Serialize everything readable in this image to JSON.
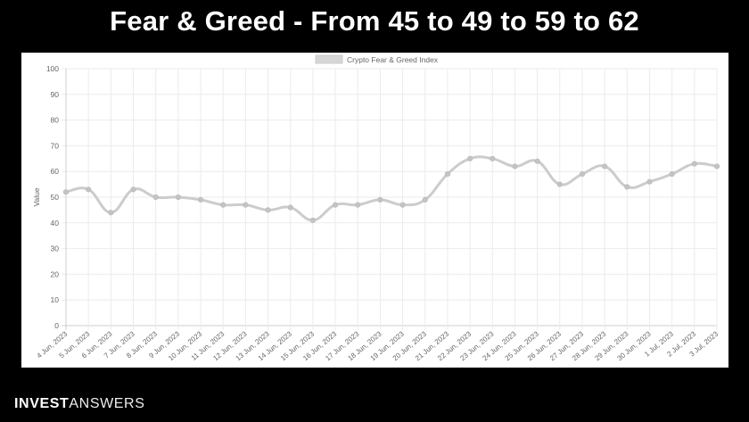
{
  "header": {
    "title": "Fear & Greed - From 45 to 49 to 59 to 62"
  },
  "brand": {
    "part1": "INVEST",
    "part2": "ANSWERS"
  },
  "chart_data": {
    "type": "line",
    "legend": "Crypto Fear & Greed Index",
    "legend_position": "top-center",
    "ylabel": "Value",
    "ylim": [
      0,
      100
    ],
    "ytick_step": 10,
    "grid": true,
    "line_color": "#cccccc",
    "categories": [
      "4 Jun, 2023",
      "5 Jun, 2023",
      "6 Jun, 2023",
      "7 Jun, 2023",
      "8 Jun, 2023",
      "9 Jun, 2023",
      "10 Jun, 2023",
      "11 Jun, 2023",
      "12 Jun, 2023",
      "13 Jun, 2023",
      "14 Jun, 2023",
      "15 Jun, 2023",
      "16 Jun, 2023",
      "17 Jun, 2023",
      "18 Jun, 2023",
      "19 Jun, 2023",
      "20 Jun, 2023",
      "21 Jun, 2023",
      "22 Jun, 2023",
      "23 Jun, 2023",
      "24 Jun, 2023",
      "25 Jun, 2023",
      "26 Jun, 2023",
      "27 Jun, 2023",
      "28 Jun, 2023",
      "29 Jun, 2023",
      "30 Jun, 2023",
      "1 Jul, 2023",
      "2 Jul, 2023",
      "3 Jul, 2023"
    ],
    "series": [
      {
        "name": "Crypto Fear & Greed Index",
        "values": [
          52,
          53,
          44,
          53,
          50,
          50,
          49,
          47,
          47,
          45,
          46,
          41,
          47,
          47,
          49,
          47,
          49,
          59,
          65,
          65,
          62,
          64,
          55,
          59,
          62,
          54,
          56,
          59,
          63,
          62
        ]
      }
    ]
  }
}
